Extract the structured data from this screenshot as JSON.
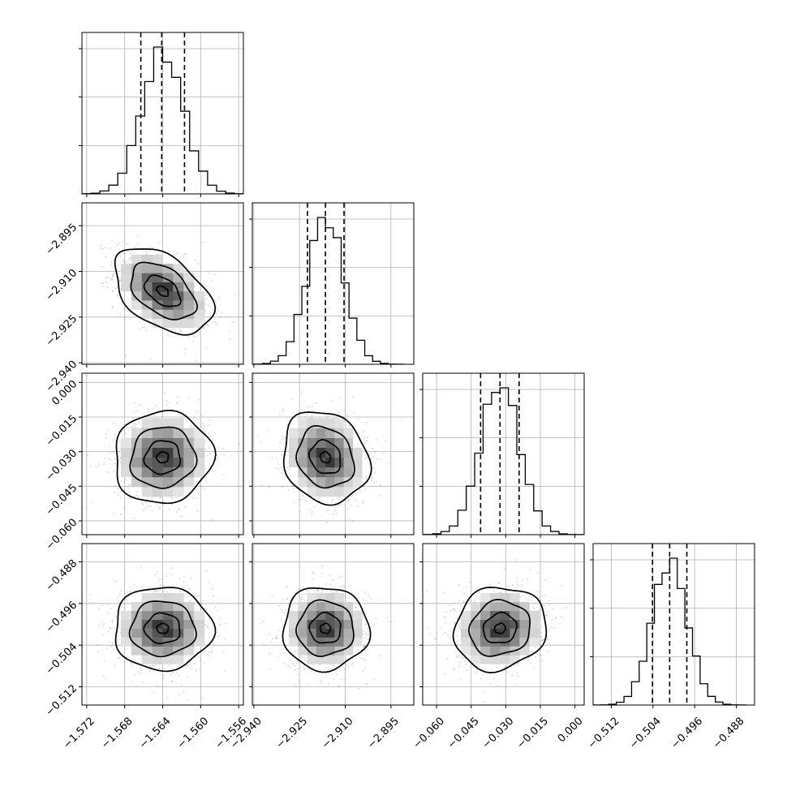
{
  "chart_data": {
    "type": "corner",
    "title": "",
    "parameters": [
      {
        "index": 0,
        "range": [
          -1.5725,
          -1.5555
        ],
        "ticks": [
          "−1.572",
          "−1.568",
          "−1.564",
          "−1.560",
          "−1.556"
        ],
        "tick_values": [
          -1.572,
          -1.568,
          -1.564,
          -1.56,
          -1.556
        ],
        "quantiles": [
          -1.5663,
          -1.5641,
          -1.5617
        ],
        "mean": -1.564,
        "sd": 0.0022
      },
      {
        "index": 1,
        "range": [
          -2.9405,
          -2.8875
        ],
        "ticks": [
          "−2.940",
          "−2.925",
          "−2.910",
          "−2.895"
        ],
        "tick_values": [
          -2.94,
          -2.925,
          -2.91,
          -2.895
        ],
        "quantiles": [
          -2.9224,
          -2.9165,
          -2.9104
        ],
        "mean": -2.9165,
        "sd": 0.006
      },
      {
        "index": 2,
        "range": [
          -0.066,
          0.004
        ],
        "ticks": [
          "−0.060",
          "−0.045",
          "−0.030",
          "−0.015",
          "0.000"
        ],
        "tick_values": [
          -0.06,
          -0.045,
          -0.03,
          -0.015,
          0.0
        ],
        "quantiles": [
          -0.0409,
          -0.0325,
          -0.0242
        ],
        "mean": -0.0325,
        "sd": 0.0085
      },
      {
        "index": 3,
        "range": [
          -0.5155,
          -0.4845
        ],
        "ticks": [
          "−0.512",
          "−0.504",
          "−0.496",
          "−0.488"
        ],
        "tick_values": [
          -0.512,
          -0.504,
          -0.496,
          -0.488
        ],
        "quantiles": [
          -0.5041,
          -0.5008,
          -0.4975
        ],
        "mean": -0.5008,
        "sd": 0.0034
      }
    ],
    "y_tick_rows": [
      {
        "row": 1,
        "ticks": [
          "−2.895",
          "−2.910",
          "−2.925",
          "−2.940"
        ]
      },
      {
        "row": 2,
        "ticks": [
          "0.000",
          "−0.015",
          "−0.030",
          "−0.045",
          "−0.060"
        ]
      },
      {
        "row": 3,
        "ticks": [
          "−0.488",
          "−0.496",
          "−0.504",
          "−0.512"
        ]
      }
    ],
    "correlations": {
      "1_0": -0.45,
      "2_0": 0.05,
      "2_1": -0.15,
      "3_0": 0.0,
      "3_1": 0.0,
      "3_2": 0.1
    },
    "histogram_style": "step",
    "quantile_lines": "dashed",
    "grid": true
  },
  "colors": {
    "line": "#000000",
    "grid": "#b0b0b0",
    "scatter": "#808080"
  }
}
